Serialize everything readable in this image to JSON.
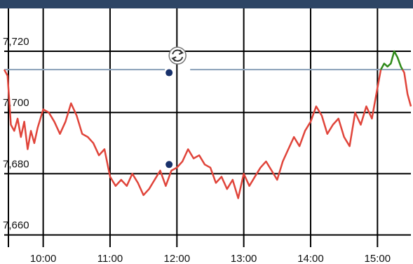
{
  "chart_data": {
    "type": "line",
    "title": "",
    "xlabel": "",
    "ylabel": "",
    "x_ticks": [
      "10:00",
      "11:00",
      "12:00",
      "13:00",
      "14:00",
      "15:00"
    ],
    "y_ticks": [
      "7,720",
      "7,700",
      "7,680",
      "7,660"
    ],
    "y_tick_values": [
      7720,
      7700,
      7680,
      7660
    ],
    "xlim": [
      "09:25",
      "15:30"
    ],
    "ylim": [
      7656,
      7734
    ],
    "grid": true,
    "reference_level": 7714,
    "colors": {
      "price_below_reference": "#e0443a",
      "price_above_reference": "#2f8a1a",
      "reference_line": "#8aa0b8",
      "marker": "#17306a",
      "header_bar": "#2d4565"
    },
    "icon": "exchange-arrows-icon",
    "series": [
      {
        "x": [
          "09:25",
          "09:28",
          "09:31",
          "09:34",
          "09:37",
          "09:40",
          "09:43",
          "09:46",
          "09:49",
          "09:52",
          "09:55",
          "10:00",
          "10:05",
          "10:10",
          "10:15",
          "10:20",
          "10:25",
          "10:30",
          "10:35",
          "10:40",
          "10:45",
          "10:50",
          "10:55",
          "11:00",
          "11:05",
          "11:10",
          "11:15",
          "11:20",
          "11:25",
          "11:30",
          "11:35",
          "11:40",
          "11:45",
          "11:50",
          "11:55",
          "12:00",
          "12:05",
          "12:10",
          "12:15",
          "12:20",
          "12:25",
          "12:30",
          "12:35",
          "12:40",
          "12:45",
          "12:50",
          "12:55",
          "13:00",
          "13:05",
          "13:10",
          "13:15",
          "13:20",
          "13:25",
          "13:30",
          "13:35",
          "13:40",
          "13:45",
          "13:50",
          "13:55",
          "14:00",
          "14:05",
          "14:10",
          "14:15",
          "14:20",
          "14:25",
          "14:30",
          "14:35",
          "14:40",
          "14:45",
          "14:50",
          "14:55",
          "15:00",
          "15:03",
          "15:06",
          "15:09",
          "15:12",
          "15:15",
          "15:18",
          "15:21",
          "15:24",
          "15:27",
          "15:30"
        ],
        "y": [
          7714,
          7712,
          7696,
          7694,
          7698,
          7692,
          7697,
          7688,
          7694,
          7690,
          7695,
          7701,
          7700,
          7697,
          7693,
          7697,
          7703,
          7699,
          7693,
          7692,
          7690,
          7686,
          7688,
          7679,
          7676,
          7678,
          7676,
          7680,
          7677,
          7673,
          7675,
          7678,
          7681,
          7676,
          7681,
          7682,
          7684,
          7688,
          7685,
          7686,
          7683,
          7682,
          7677,
          7679,
          7675,
          7678,
          7672,
          7680,
          7676,
          7679,
          7682,
          7684,
          7681,
          7678,
          7684,
          7688,
          7692,
          7689,
          7694,
          7697,
          7702,
          7699,
          7693,
          7696,
          7698,
          7692,
          7689,
          7700,
          7696,
          7702,
          7698,
          7708,
          7714,
          7716,
          7715,
          7716,
          7720,
          7718,
          7715,
          7713,
          7706,
          7702
        ]
      }
    ],
    "markers": [
      {
        "x": "11:53",
        "y": 7683
      },
      {
        "x": "11:53",
        "y": 7713
      }
    ]
  }
}
